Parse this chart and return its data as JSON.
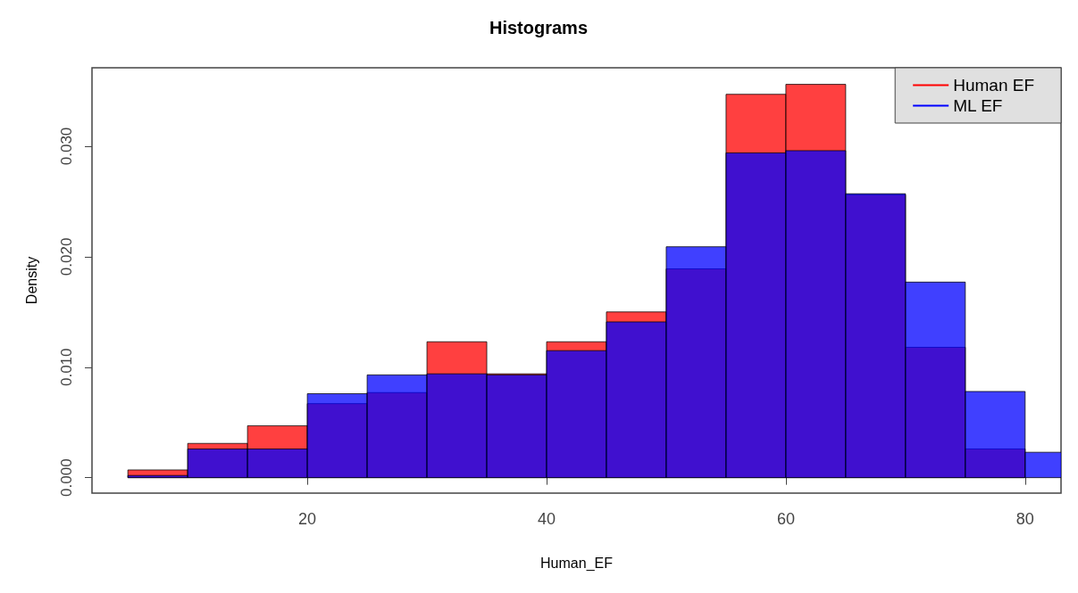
{
  "chart_data": {
    "type": "histogram",
    "title": "Histograms",
    "xlabel": "Human_EF",
    "ylabel": "Density",
    "bins": [
      5,
      10,
      15,
      20,
      25,
      30,
      35,
      40,
      45,
      50,
      55,
      60,
      65,
      70,
      75,
      80,
      85
    ],
    "series": [
      {
        "name": "Human EF",
        "color": "#ff0000",
        "values": [
          0.0007,
          0.0031,
          0.0047,
          0.0067,
          0.0077,
          0.0123,
          0.0094,
          0.0123,
          0.015,
          0.0189,
          0.0347,
          0.0356,
          0.0256,
          0.0118,
          0.0026,
          null
        ]
      },
      {
        "name": "ML EF",
        "color": "#0000ff",
        "values": [
          0.0002,
          0.0026,
          0.0026,
          0.0076,
          0.0093,
          0.0094,
          0.0093,
          0.0115,
          0.0141,
          0.0209,
          0.0294,
          0.0296,
          0.0257,
          0.0177,
          0.0078,
          0.0023
        ]
      }
    ],
    "xlim": [
      2,
      83
    ],
    "xticks": [
      20,
      40,
      60,
      80
    ],
    "ylim": [
      -0.0014,
      0.0371
    ],
    "yticks": [
      {
        "value": 0,
        "label": "0.000"
      },
      {
        "value": 0.01,
        "label": "0.010"
      },
      {
        "value": 0.02,
        "label": "0.020"
      },
      {
        "value": 0.03,
        "label": "0.030"
      }
    ],
    "legend": "top right",
    "grid": false
  }
}
